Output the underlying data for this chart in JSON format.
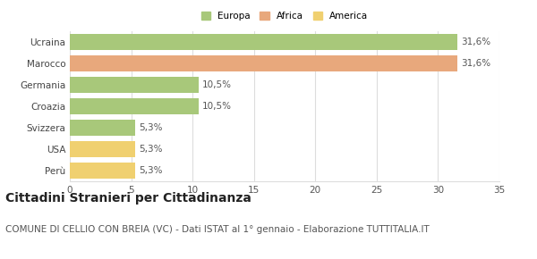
{
  "categories": [
    "Ucraina",
    "Marocco",
    "Germania",
    "Croazia",
    "Svizzera",
    "USA",
    "Perù"
  ],
  "values": [
    31.6,
    31.6,
    10.5,
    10.5,
    5.3,
    5.3,
    5.3
  ],
  "labels": [
    "31,6%",
    "31,6%",
    "10,5%",
    "10,5%",
    "5,3%",
    "5,3%",
    "5,3%"
  ],
  "colors": [
    "#a8c87a",
    "#e8a87c",
    "#a8c87a",
    "#a8c87a",
    "#a8c87a",
    "#f0d070",
    "#f0d070"
  ],
  "legend": [
    {
      "label": "Europa",
      "color": "#a8c87a"
    },
    {
      "label": "Africa",
      "color": "#e8a87c"
    },
    {
      "label": "America",
      "color": "#f0d070"
    }
  ],
  "xlim": [
    0,
    35
  ],
  "xticks": [
    0,
    5,
    10,
    15,
    20,
    25,
    30,
    35
  ],
  "title": "Cittadini Stranieri per Cittadinanza",
  "subtitle": "COMUNE DI CELLIO CON BREIA (VC) - Dati ISTAT al 1° gennaio - Elaborazione TUTTITALIA.IT",
  "background_color": "#ffffff",
  "grid_color": "#dddddd",
  "title_fontsize": 10,
  "subtitle_fontsize": 7.5,
  "label_fontsize": 7.5,
  "tick_fontsize": 7.5,
  "bar_height": 0.75
}
